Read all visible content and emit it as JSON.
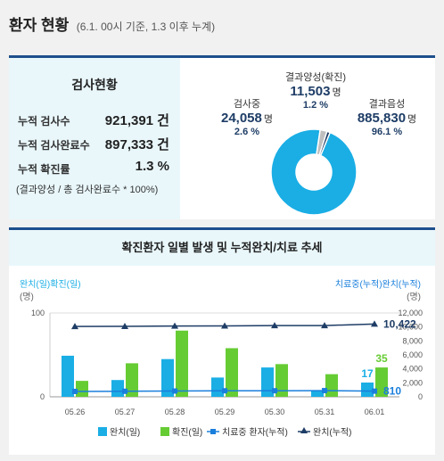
{
  "header": {
    "title": "환자 현황",
    "subtitle": "(6.1. 00시 기준, 1.3 이후 누계)"
  },
  "test_status": {
    "title": "검사현황",
    "rows": [
      {
        "label": "누적 검사수",
        "value": "921,391 건"
      },
      {
        "label": "누적 검사완료수",
        "value": "897,333 건"
      },
      {
        "label": "누적 확진률",
        "value": "1.3 %"
      }
    ],
    "note": "(결과양성 / 총 검사완료수 * 100%)"
  },
  "pie": {
    "positive": {
      "label": "결과양성(확진)",
      "value": "11,503",
      "unit": "명",
      "pct": "1.2 %"
    },
    "testing": {
      "label": "검사중",
      "value": "24,058",
      "unit": "명",
      "pct": "2.6 %"
    },
    "negative": {
      "label": "결과음성",
      "value": "885,830",
      "unit": "명",
      "pct": "96.1 %"
    },
    "colors": {
      "positive": "#1e3d66",
      "testing": "#bfbfbf",
      "negative": "#1aaee5"
    }
  },
  "chart_data": [
    {
      "type": "pie",
      "labels": [
        "결과음성",
        "검사중",
        "결과양성(확진)"
      ],
      "values": [
        96.1,
        2.6,
        1.2
      ],
      "style": "donut"
    },
    {
      "type": "bar",
      "title": "확진환자 일별 발생 및 누적완치/치료 추세",
      "categories": [
        "05.26",
        "05.27",
        "05.28",
        "05.29",
        "05.30",
        "05.31",
        "06.01"
      ],
      "left_axis_label": "완치(일)확진(일)",
      "left_axis_unit": "(명)",
      "right_axis_label": "치료중(누적)완치(누적)",
      "right_axis_unit": "(명)",
      "left_ticks": [
        "100",
        "0"
      ],
      "left_ylim": [
        0,
        100
      ],
      "right_ticks": [
        "12,000",
        "10,000",
        "8,000",
        "6,000",
        "4,000",
        "2,000",
        "0"
      ],
      "right_ylim": [
        0,
        12000
      ],
      "series": [
        {
          "name": "완치(일)",
          "kind": "bar",
          "axis": "left",
          "color": "#1aaee5",
          "values": [
            49,
            20,
            45,
            23,
            35,
            8,
            17
          ]
        },
        {
          "name": "확진(일)",
          "kind": "bar",
          "axis": "left",
          "color": "#66cc33",
          "values": [
            19,
            40,
            79,
            58,
            39,
            27,
            35
          ]
        },
        {
          "name": "치료중 환자(누적)",
          "kind": "line",
          "axis": "right",
          "color": "#1a7fdc",
          "values": [
            769,
            792,
            826,
            861,
            865,
            884,
            810
          ]
        },
        {
          "name": "완치(누적)",
          "kind": "line",
          "axis": "right",
          "color": "#1e3d66",
          "values": [
            10066,
            10086,
            10131,
            10154,
            10189,
            10197,
            10422
          ]
        }
      ],
      "annotations": [
        {
          "text": "17",
          "color": "#1aaee5"
        },
        {
          "text": "35",
          "color": "#66cc33"
        },
        {
          "text": "10,422",
          "color": "#1e3d66"
        },
        {
          "text": "810",
          "color": "#1a7fdc"
        }
      ],
      "legend": [
        "완치(일)",
        "확진(일)",
        "치료중 환자(누적)",
        "완치(누적)"
      ],
      "legend_position": "bottom"
    }
  ]
}
